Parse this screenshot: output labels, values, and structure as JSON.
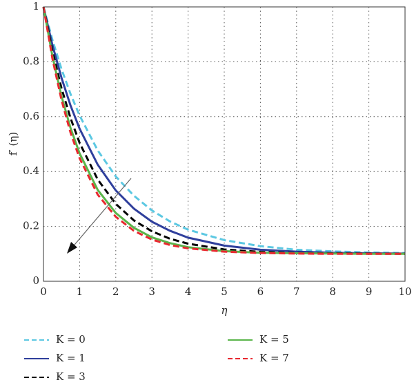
{
  "chart_data": {
    "type": "line",
    "xlabel": "η",
    "ylabel": "f′ (η)",
    "x": [
      0,
      0.25,
      0.5,
      0.75,
      1,
      1.5,
      2,
      2.5,
      3,
      3.5,
      4,
      5,
      6,
      7,
      8,
      9,
      10
    ],
    "series": [
      {
        "name": "K = 0",
        "color": "#5cc8e2",
        "dashed": true,
        "values": [
          1,
          0.879,
          0.773,
          0.682,
          0.604,
          0.477,
          0.382,
          0.312,
          0.258,
          0.218,
          0.188,
          0.15,
          0.128,
          0.115,
          0.109,
          0.105,
          0.103
        ]
      },
      {
        "name": "K = 1",
        "color": "#2f3f9c",
        "dashed": false,
        "values": [
          1,
          0.86,
          0.741,
          0.64,
          0.556,
          0.425,
          0.331,
          0.265,
          0.217,
          0.184,
          0.159,
          0.13,
          0.115,
          0.108,
          0.104,
          0.102,
          0.101
        ]
      },
      {
        "name": "K = 3",
        "color": "#000000",
        "dashed": true,
        "values": [
          1,
          0.837,
          0.703,
          0.594,
          0.504,
          0.371,
          0.282,
          0.222,
          0.182,
          0.155,
          0.137,
          0.116,
          0.107,
          0.103,
          0.102,
          0.101,
          0.1
        ]
      },
      {
        "name": "K = 5",
        "color": "#5ab54a",
        "dashed": false,
        "values": [
          1,
          0.819,
          0.674,
          0.558,
          0.466,
          0.333,
          0.249,
          0.195,
          0.16,
          0.139,
          0.124,
          0.11,
          0.104,
          0.102,
          0.101,
          0.1,
          0.1
        ]
      },
      {
        "name": "K = 7",
        "color": "#e8282f",
        "dashed": true,
        "values": [
          1,
          0.81,
          0.66,
          0.541,
          0.448,
          0.316,
          0.235,
          0.184,
          0.152,
          0.132,
          0.12,
          0.108,
          0.103,
          0.101,
          0.1,
          0.1,
          0.1
        ]
      }
    ],
    "xlim": [
      0,
      10
    ],
    "xticks": [
      0,
      1,
      2,
      3,
      4,
      5,
      6,
      7,
      8,
      9,
      10
    ],
    "ylim": [
      0,
      1
    ],
    "yticks": [
      0,
      0.2,
      0.4,
      0.6,
      0.8,
      1
    ],
    "grid": true
  }
}
